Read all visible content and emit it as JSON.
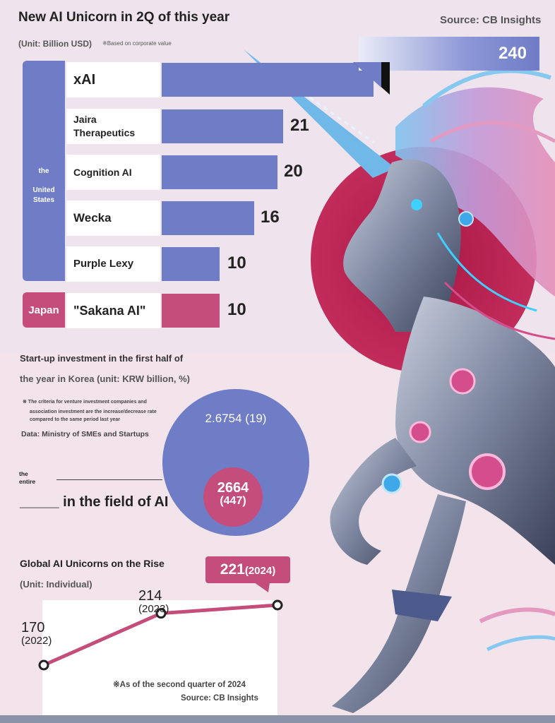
{
  "header": {
    "title": "New AI Unicorn in 2Q of this year",
    "unit": "(Unit: Billion USD)",
    "note": "※Based on corporate value",
    "source": "Source: CB Insights"
  },
  "regions": {
    "us": "the\n\nUnited\nStates",
    "jp": "Japan"
  },
  "colors": {
    "us": "#6f7cc6",
    "japan": "#c44d7b"
  },
  "chart_data": [
    {
      "type": "bar",
      "title": "New AI Unicorn in 2Q of this year",
      "unit": "Billion USD",
      "categories": [
        "xAI",
        "Jaira Therapeutics",
        "Cognition AI",
        "Wecka",
        "Purple Lexy",
        "\"Sakana AI\""
      ],
      "display_labels": [
        "xAI",
        "Jaira\nTherapeutics",
        "Cognition AI",
        "Wecka",
        "Purple Lexy",
        "\"Sakana AI\""
      ],
      "values": [
        240,
        21,
        20,
        16,
        10,
        10
      ],
      "value_labels": [
        "240",
        "21",
        "20",
        "16",
        "10",
        "10"
      ],
      "groups": [
        "the United States",
        "the United States",
        "the United States",
        "the United States",
        "the United States",
        "Japan"
      ]
    },
    {
      "type": "bubble",
      "title": "Start-up investment in the first half of the year in Korea (unit: KRW billion, %)",
      "series": [
        {
          "name": "the entire",
          "value": 2.6754,
          "change_pct": 19,
          "label": "2.6754 (19)"
        },
        {
          "name": "in the field of AI",
          "value": 2664,
          "change_pct": 447,
          "label": "2664\n(447)"
        }
      ]
    },
    {
      "type": "line",
      "title": "Global AI Unicorns on the Rise",
      "unit": "Individual",
      "x": [
        "2022",
        "2023",
        "2024"
      ],
      "values": [
        170,
        214,
        221
      ],
      "point_labels": [
        "170",
        "214",
        "221"
      ],
      "year_labels": [
        "(2022)",
        "(2023)",
        "(2024)"
      ]
    }
  ],
  "section2": {
    "title_line1": "Start-up investment in the first half of",
    "title_line2": "the year in Korea (unit: KRW billion, %)",
    "note_line1": "※ The criteria for venture investment companies and",
    "note_line2": "association investment are the increase/decrease rate",
    "note_line3": "compared to the same period last year",
    "data_source": "Data: Ministry of SMEs and Startups",
    "entire_label": "the\nentire",
    "ai_label": "_____ in the field of AI",
    "big_value": "2.6754 (19)",
    "small_value_top": "2664",
    "small_value_bottom": "(447)"
  },
  "section3": {
    "title": "Global AI Unicorns on the Rise",
    "unit": "(Unit: Individual)",
    "tag_value": "221",
    "tag_year": "(2024)",
    "footnote": "※As of the second quarter of 2024",
    "source": "Source: CB Insights"
  }
}
